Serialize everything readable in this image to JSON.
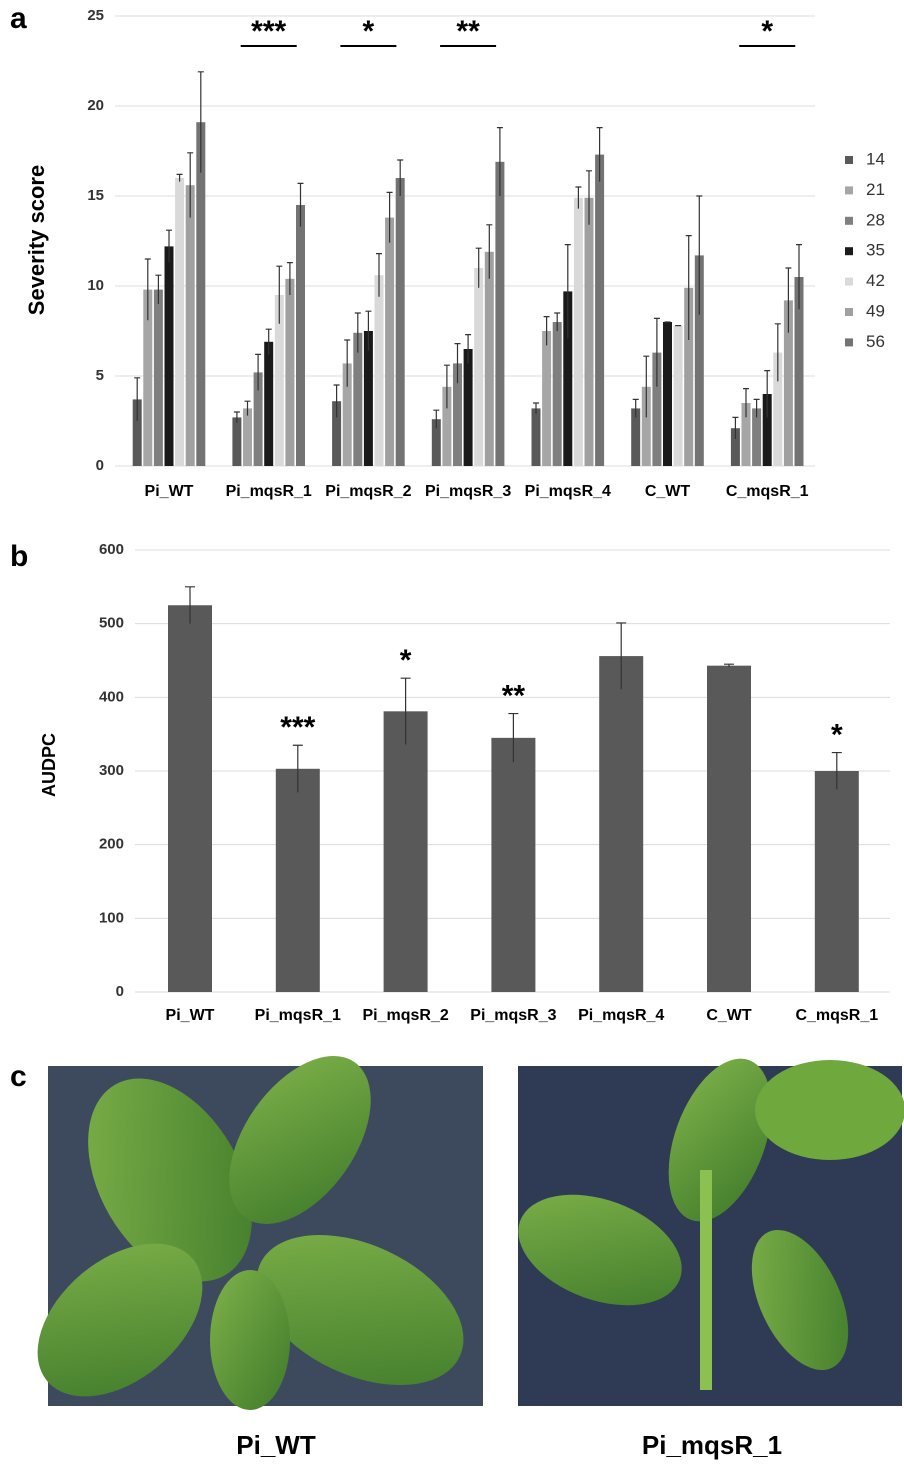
{
  "panel_labels": [
    "a",
    "b",
    "c"
  ],
  "chart_data": [
    {
      "type": "bar",
      "y_label": "Severity score",
      "categories": [
        "Pi_WT",
        "Pi_mqsR_1",
        "Pi_mqsR_2",
        "Pi_mqsR_3",
        "Pi_mqsR_4",
        "C_WT",
        "C_mqsR_1"
      ],
      "series": [
        {
          "name": "14",
          "color": "#595959",
          "values": [
            3.7,
            2.7,
            3.6,
            2.6,
            3.2,
            3.2,
            2.1
          ],
          "errors": [
            1.2,
            0.3,
            0.9,
            0.5,
            0.3,
            0.5,
            0.6
          ]
        },
        {
          "name": "21",
          "color": "#a6a6a6",
          "values": [
            9.8,
            3.2,
            5.7,
            4.4,
            7.5,
            4.4,
            3.5
          ],
          "errors": [
            1.7,
            0.4,
            1.3,
            1.2,
            0.8,
            1.7,
            0.8
          ]
        },
        {
          "name": "28",
          "color": "#7f7f7f",
          "values": [
            9.8,
            5.2,
            7.4,
            5.7,
            8.0,
            6.3,
            3.2
          ],
          "errors": [
            0.8,
            1.0,
            1.1,
            1.1,
            0.5,
            1.9,
            0.5
          ]
        },
        {
          "name": "35",
          "color": "#1a1a1a",
          "values": [
            12.2,
            6.9,
            7.5,
            6.5,
            9.7,
            8.0,
            4.0
          ],
          "errors": [
            0.9,
            0.7,
            1.1,
            0.8,
            2.6,
            0,
            1.3
          ]
        },
        {
          "name": "42",
          "color": "#d9d9d9",
          "values": [
            16.0,
            9.5,
            10.6,
            11.0,
            14.9,
            7.8,
            6.3
          ],
          "errors": [
            0.2,
            1.6,
            1.2,
            1.1,
            0.6,
            0,
            1.6
          ]
        },
        {
          "name": "49",
          "color": "#a0a0a0",
          "values": [
            15.6,
            10.4,
            13.8,
            11.9,
            14.9,
            9.9,
            9.2
          ],
          "errors": [
            1.8,
            0.9,
            1.4,
            1.5,
            1.5,
            2.9,
            1.8
          ]
        },
        {
          "name": "56",
          "color": "#737373",
          "values": [
            19.1,
            14.5,
            16.0,
            16.9,
            17.3,
            11.7,
            10.5
          ],
          "errors": [
            2.8,
            1.2,
            1.0,
            1.9,
            1.5,
            3.3,
            1.8
          ]
        }
      ],
      "significance": [
        null,
        "***",
        "*",
        "**",
        null,
        null,
        "*"
      ],
      "ylim": [
        0,
        25
      ],
      "yticks": [
        0,
        5,
        10,
        15,
        20,
        25
      ],
      "grid": true,
      "legend": "right"
    },
    {
      "type": "bar",
      "y_label": "AUDPC",
      "categories": [
        "Pi_WT",
        "Pi_mqsR_1",
        "Pi_mqsR_2",
        "Pi_mqsR_3",
        "Pi_mqsR_4",
        "C_WT",
        "C_mqsR_1"
      ],
      "values": [
        525,
        303,
        381,
        345,
        456,
        443,
        300
      ],
      "errors": [
        25,
        32,
        45,
        33,
        45,
        2,
        25
      ],
      "color": "#595959",
      "significance": [
        null,
        "***",
        "*",
        "**",
        null,
        null,
        "*"
      ],
      "ylim": [
        0,
        600
      ],
      "yticks": [
        0,
        100,
        200,
        300,
        400,
        500,
        600
      ],
      "grid": true
    }
  ],
  "photos": [
    {
      "caption": "Pi_WT"
    },
    {
      "caption": "Pi_mqsR_1"
    }
  ]
}
